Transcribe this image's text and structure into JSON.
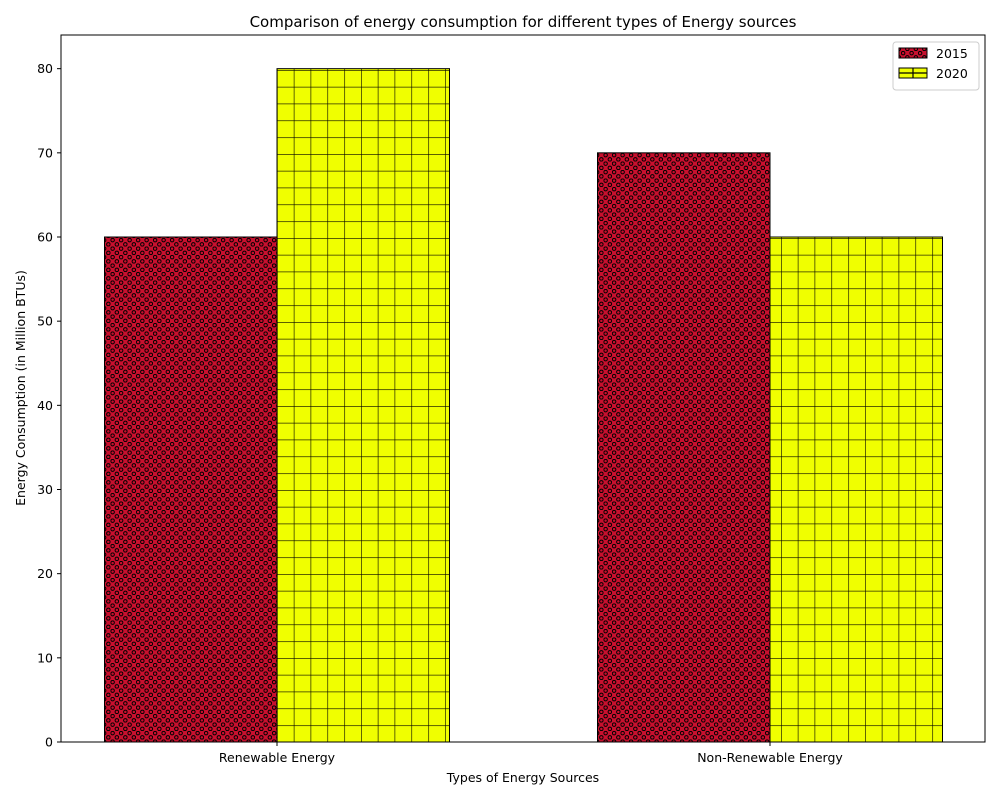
{
  "chart_data": {
    "type": "bar",
    "title": "Comparison of energy consumption for different types of Energy sources",
    "xlabel": "Types of Energy Sources",
    "ylabel": "Energy Consumption (in Million BTUs)",
    "categories": [
      "Renewable Energy",
      "Non-Renewable Energy"
    ],
    "series": [
      {
        "name": "2015",
        "values": [
          60,
          70
        ],
        "color": "#c8102e",
        "hatch": "dots"
      },
      {
        "name": "2020",
        "values": [
          80,
          60
        ],
        "color": "#f0ff00",
        "hatch": "grid"
      }
    ],
    "ylim": [
      0,
      84
    ],
    "yticks": [
      0,
      10,
      20,
      30,
      40,
      50,
      60,
      70,
      80
    ],
    "grid": false,
    "legend_position": "top-right"
  }
}
